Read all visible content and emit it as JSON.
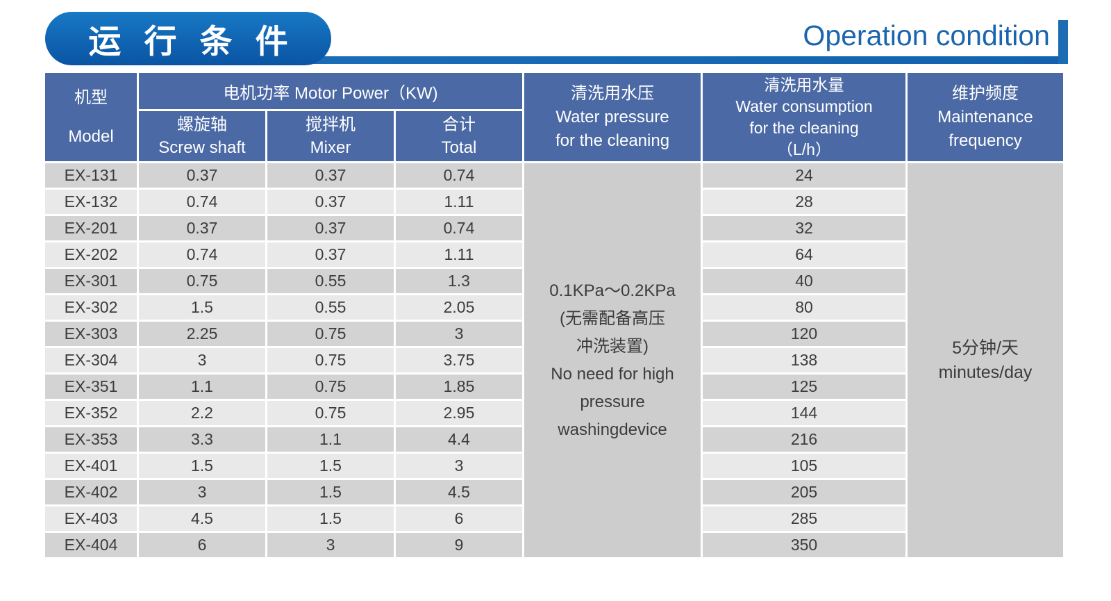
{
  "page": {
    "title_cn": "运 行 条 件",
    "title_en": "Operation condition",
    "accent_color": "#1b6cb4",
    "header_blue": "#4b69a4",
    "row_dark": "#d3d3d3",
    "row_light": "#e9e9e9",
    "merged_gray": "#cdcdcd"
  },
  "table": {
    "headers": {
      "model": "机型\nModel",
      "motor_power_group": "电机功率  Motor Power（KW)",
      "screw_shaft": "螺旋轴\nScrew shaft",
      "mixer": "搅拌机\nMixer",
      "total": "合计\nTotal",
      "water_pressure": "清洗用水压\nWater pressure\nfor the cleaning",
      "water_consumption": "清洗用水量\nWater consumption\nfor the cleaning\n（L/h）",
      "maintenance": "维护频度\nMaintenance\nfrequency"
    },
    "pressure_cell": "0.1KPa～0.2KPa\n(无需配备高压\n冲洗装置)\nNo need for high\npressure\nwashingdevice",
    "maintenance_cell": "5分钟/天\nminutes/day",
    "rows": [
      {
        "model": "EX-131",
        "screw": "0.37",
        "mixer": "0.37",
        "total": "0.74",
        "consumption": "24"
      },
      {
        "model": "EX-132",
        "screw": "0.74",
        "mixer": "0.37",
        "total": "1.11",
        "consumption": "28"
      },
      {
        "model": "EX-201",
        "screw": "0.37",
        "mixer": "0.37",
        "total": "0.74",
        "consumption": "32"
      },
      {
        "model": "EX-202",
        "screw": "0.74",
        "mixer": "0.37",
        "total": "1.11",
        "consumption": "64"
      },
      {
        "model": "EX-301",
        "screw": "0.75",
        "mixer": "0.55",
        "total": "1.3",
        "consumption": "40"
      },
      {
        "model": "EX-302",
        "screw": "1.5",
        "mixer": "0.55",
        "total": "2.05",
        "consumption": "80"
      },
      {
        "model": "EX-303",
        "screw": "2.25",
        "mixer": "0.75",
        "total": "3",
        "consumption": "120"
      },
      {
        "model": "EX-304",
        "screw": "3",
        "mixer": "0.75",
        "total": "3.75",
        "consumption": "138"
      },
      {
        "model": "EX-351",
        "screw": "1.1",
        "mixer": "0.75",
        "total": "1.85",
        "consumption": "125"
      },
      {
        "model": "EX-352",
        "screw": "2.2",
        "mixer": "0.75",
        "total": "2.95",
        "consumption": "144"
      },
      {
        "model": "EX-353",
        "screw": "3.3",
        "mixer": "1.1",
        "total": "4.4",
        "consumption": "216"
      },
      {
        "model": "EX-401",
        "screw": "1.5",
        "mixer": "1.5",
        "total": "3",
        "consumption": "105"
      },
      {
        "model": "EX-402",
        "screw": "3",
        "mixer": "1.5",
        "total": "4.5",
        "consumption": "205"
      },
      {
        "model": "EX-403",
        "screw": "4.5",
        "mixer": "1.5",
        "total": "6",
        "consumption": "285"
      },
      {
        "model": "EX-404",
        "screw": "6",
        "mixer": "3",
        "total": "9",
        "consumption": "350"
      }
    ]
  }
}
